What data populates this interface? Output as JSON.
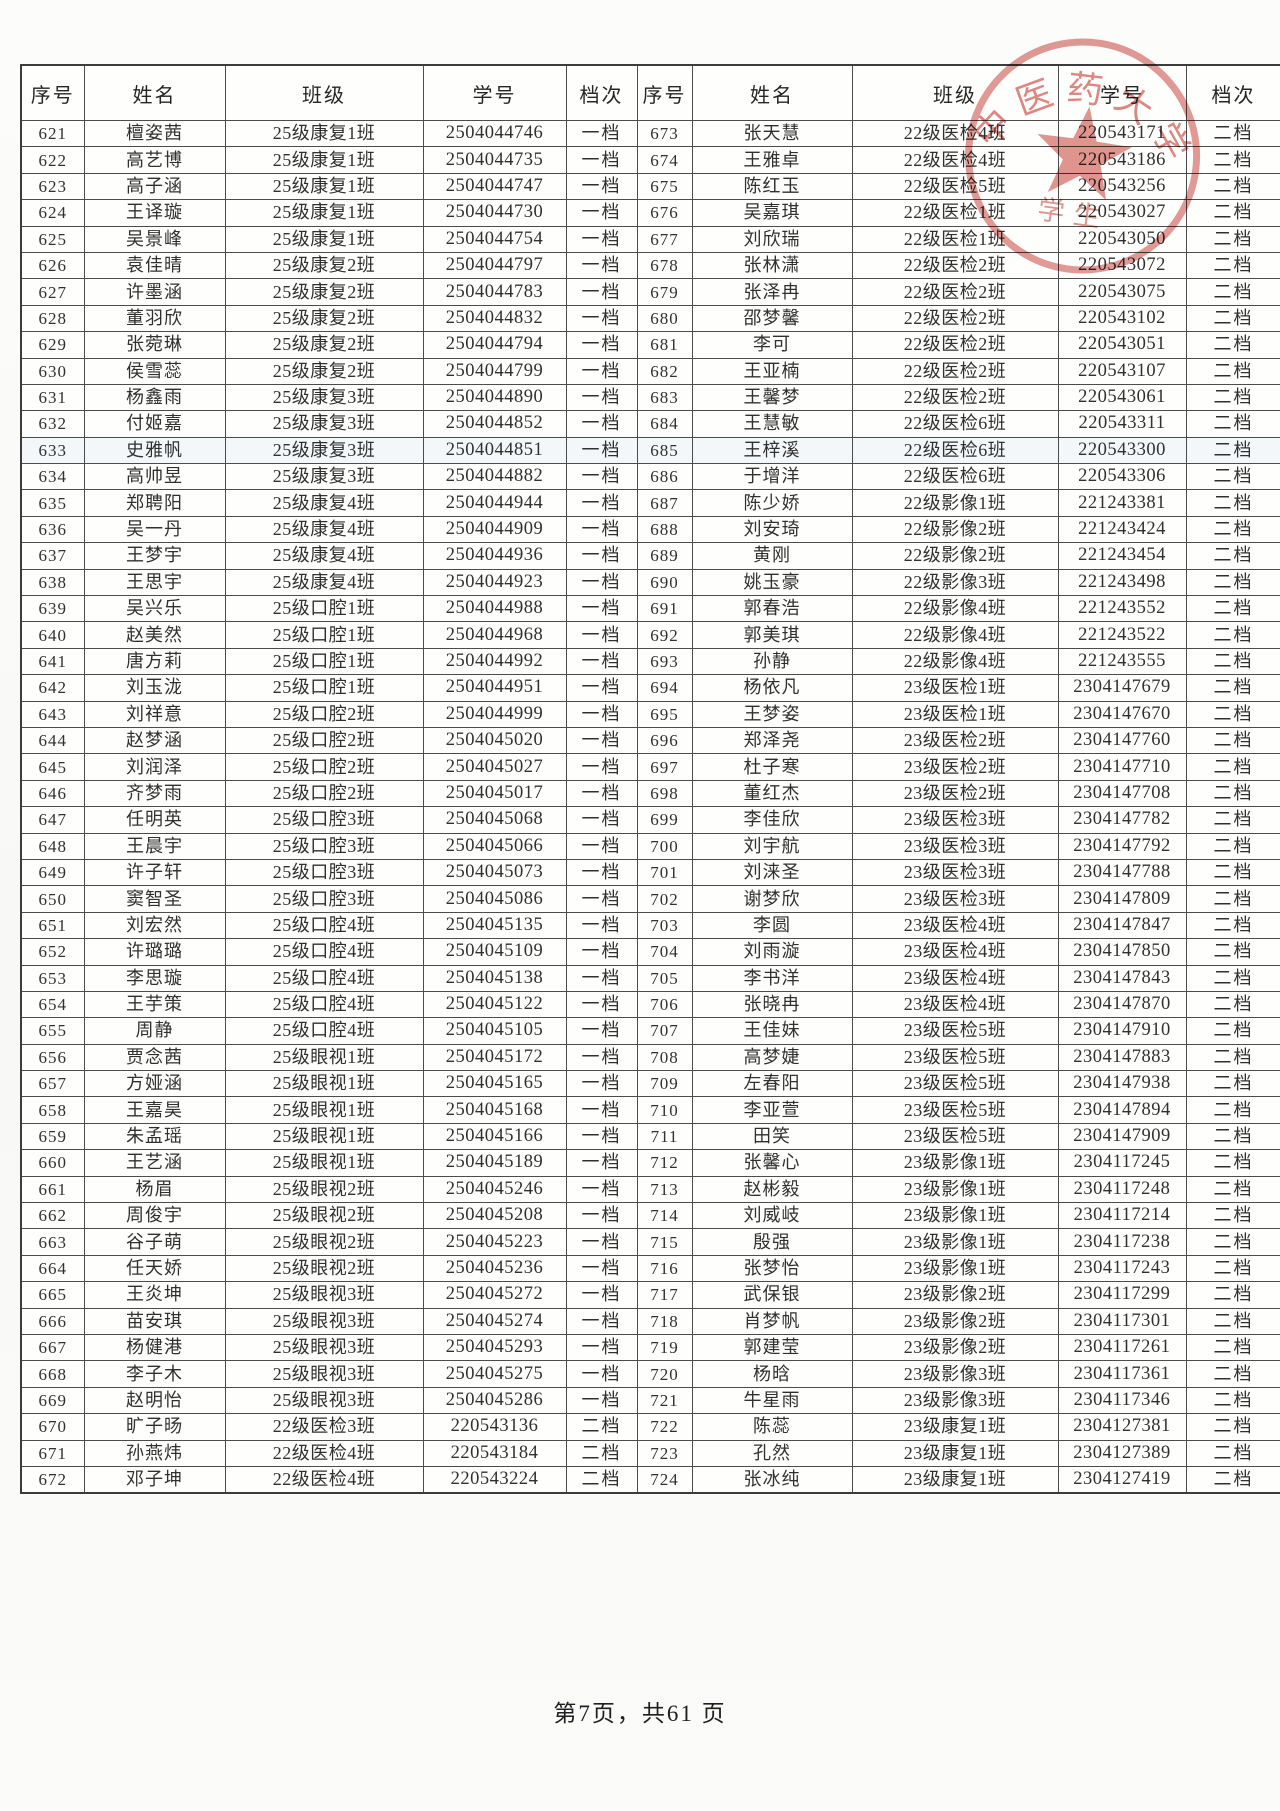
{
  "table": {
    "headers": [
      "序号",
      "姓名",
      "班级",
      "学号",
      "档次",
      "序号",
      "姓名",
      "班级",
      "学号",
      "档次"
    ],
    "rows": [
      [
        "621",
        "檀姿茜",
        "25级康复1班",
        "2504044746",
        "一档",
        "673",
        "张天慧",
        "22级医检4班",
        "220543171",
        "二档"
      ],
      [
        "622",
        "高艺博",
        "25级康复1班",
        "2504044735",
        "一档",
        "674",
        "王雅卓",
        "22级医检4班",
        "220543186",
        "二档"
      ],
      [
        "623",
        "高子涵",
        "25级康复1班",
        "2504044747",
        "一档",
        "675",
        "陈红玉",
        "22级医检5班",
        "220543256",
        "二档"
      ],
      [
        "624",
        "王译璇",
        "25级康复1班",
        "2504044730",
        "一档",
        "676",
        "吴嘉琪",
        "22级医检1班",
        "220543027",
        "二档"
      ],
      [
        "625",
        "吴景峰",
        "25级康复1班",
        "2504044754",
        "一档",
        "677",
        "刘欣瑞",
        "22级医检1班",
        "220543050",
        "二档"
      ],
      [
        "626",
        "袁佳晴",
        "25级康复2班",
        "2504044797",
        "一档",
        "678",
        "张林潇",
        "22级医检2班",
        "220543072",
        "二档"
      ],
      [
        "627",
        "许墨涵",
        "25级康复2班",
        "2504044783",
        "一档",
        "679",
        "张泽冉",
        "22级医检2班",
        "220543075",
        "二档"
      ],
      [
        "628",
        "董羽欣",
        "25级康复2班",
        "2504044832",
        "一档",
        "680",
        "邵梦馨",
        "22级医检2班",
        "220543102",
        "二档"
      ],
      [
        "629",
        "张菀琳",
        "25级康复2班",
        "2504044794",
        "一档",
        "681",
        "李可",
        "22级医检2班",
        "220543051",
        "二档"
      ],
      [
        "630",
        "侯雪蕊",
        "25级康复2班",
        "2504044799",
        "一档",
        "682",
        "王亚楠",
        "22级医检2班",
        "220543107",
        "二档"
      ],
      [
        "631",
        "杨鑫雨",
        "25级康复3班",
        "2504044890",
        "一档",
        "683",
        "王馨梦",
        "22级医检2班",
        "220543061",
        "二档"
      ],
      [
        "632",
        "付姬嘉",
        "25级康复3班",
        "2504044852",
        "一档",
        "684",
        "王慧敏",
        "22级医检6班",
        "220543311",
        "二档"
      ],
      [
        "633",
        "史雅帆",
        "25级康复3班",
        "2504044851",
        "一档",
        "685",
        "王梓溪",
        "22级医检6班",
        "220543300",
        "二档"
      ],
      [
        "634",
        "高帅昱",
        "25级康复3班",
        "2504044882",
        "一档",
        "686",
        "于增洋",
        "22级医检6班",
        "220543306",
        "二档"
      ],
      [
        "635",
        "郑聘阳",
        "25级康复4班",
        "2504044944",
        "一档",
        "687",
        "陈少娇",
        "22级影像1班",
        "221243381",
        "二档"
      ],
      [
        "636",
        "吴一丹",
        "25级康复4班",
        "2504044909",
        "一档",
        "688",
        "刘安琦",
        "22级影像2班",
        "221243424",
        "二档"
      ],
      [
        "637",
        "王梦宇",
        "25级康复4班",
        "2504044936",
        "一档",
        "689",
        "黄刚",
        "22级影像2班",
        "221243454",
        "二档"
      ],
      [
        "638",
        "王思宇",
        "25级康复4班",
        "2504044923",
        "一档",
        "690",
        "姚玉豪",
        "22级影像3班",
        "221243498",
        "二档"
      ],
      [
        "639",
        "吴兴乐",
        "25级口腔1班",
        "2504044988",
        "一档",
        "691",
        "郭春浩",
        "22级影像4班",
        "221243552",
        "二档"
      ],
      [
        "640",
        "赵美然",
        "25级口腔1班",
        "2504044968",
        "一档",
        "692",
        "郭美琪",
        "22级影像4班",
        "221243522",
        "二档"
      ],
      [
        "641",
        "唐方莉",
        "25级口腔1班",
        "2504044992",
        "一档",
        "693",
        "孙静",
        "22级影像4班",
        "221243555",
        "二档"
      ],
      [
        "642",
        "刘玉泷",
        "25级口腔1班",
        "2504044951",
        "一档",
        "694",
        "杨依凡",
        "23级医检1班",
        "2304147679",
        "二档"
      ],
      [
        "643",
        "刘祥意",
        "25级口腔2班",
        "2504044999",
        "一档",
        "695",
        "王梦姿",
        "23级医检1班",
        "2304147670",
        "二档"
      ],
      [
        "644",
        "赵梦涵",
        "25级口腔2班",
        "2504045020",
        "一档",
        "696",
        "郑泽尧",
        "23级医检2班",
        "2304147760",
        "二档"
      ],
      [
        "645",
        "刘润泽",
        "25级口腔2班",
        "2504045027",
        "一档",
        "697",
        "杜子寒",
        "23级医检2班",
        "2304147710",
        "二档"
      ],
      [
        "646",
        "齐梦雨",
        "25级口腔2班",
        "2504045017",
        "一档",
        "698",
        "董红杰",
        "23级医检2班",
        "2304147708",
        "二档"
      ],
      [
        "647",
        "任明英",
        "25级口腔3班",
        "2504045068",
        "一档",
        "699",
        "李佳欣",
        "23级医检3班",
        "2304147782",
        "二档"
      ],
      [
        "648",
        "王晨宇",
        "25级口腔3班",
        "2504045066",
        "一档",
        "700",
        "刘宇航",
        "23级医检3班",
        "2304147792",
        "二档"
      ],
      [
        "649",
        "许子轩",
        "25级口腔3班",
        "2504045073",
        "一档",
        "701",
        "刘涞圣",
        "23级医检3班",
        "2304147788",
        "二档"
      ],
      [
        "650",
        "窦智圣",
        "25级口腔3班",
        "2504045086",
        "一档",
        "702",
        "谢梦欣",
        "23级医检3班",
        "2304147809",
        "二档"
      ],
      [
        "651",
        "刘宏然",
        "25级口腔4班",
        "2504045135",
        "一档",
        "703",
        "李圆",
        "23级医检4班",
        "2304147847",
        "二档"
      ],
      [
        "652",
        "许璐璐",
        "25级口腔4班",
        "2504045109",
        "一档",
        "704",
        "刘雨漩",
        "23级医检4班",
        "2304147850",
        "二档"
      ],
      [
        "653",
        "李思璇",
        "25级口腔4班",
        "2504045138",
        "一档",
        "705",
        "李书洋",
        "23级医检4班",
        "2304147843",
        "二档"
      ],
      [
        "654",
        "王芋策",
        "25级口腔4班",
        "2504045122",
        "一档",
        "706",
        "张晓冉",
        "23级医检4班",
        "2304147870",
        "二档"
      ],
      [
        "655",
        "周静",
        "25级口腔4班",
        "2504045105",
        "一档",
        "707",
        "王佳妹",
        "23级医检5班",
        "2304147910",
        "二档"
      ],
      [
        "656",
        "贾念茜",
        "25级眼视1班",
        "2504045172",
        "一档",
        "708",
        "高梦婕",
        "23级医检5班",
        "2304147883",
        "二档"
      ],
      [
        "657",
        "方娅涵",
        "25级眼视1班",
        "2504045165",
        "一档",
        "709",
        "左春阳",
        "23级医检5班",
        "2304147938",
        "二档"
      ],
      [
        "658",
        "王嘉昊",
        "25级眼视1班",
        "2504045168",
        "一档",
        "710",
        "李亚萱",
        "23级医检5班",
        "2304147894",
        "二档"
      ],
      [
        "659",
        "朱孟瑶",
        "25级眼视1班",
        "2504045166",
        "一档",
        "711",
        "田笑",
        "23级医检5班",
        "2304147909",
        "二档"
      ],
      [
        "660",
        "王艺涵",
        "25级眼视1班",
        "2504045189",
        "一档",
        "712",
        "张馨心",
        "23级影像1班",
        "2304117245",
        "二档"
      ],
      [
        "661",
        "杨眉",
        "25级眼视2班",
        "2504045246",
        "一档",
        "713",
        "赵彬毅",
        "23级影像1班",
        "2304117248",
        "二档"
      ],
      [
        "662",
        "周俊宇",
        "25级眼视2班",
        "2504045208",
        "一档",
        "714",
        "刘威岐",
        "23级影像1班",
        "2304117214",
        "二档"
      ],
      [
        "663",
        "谷子萌",
        "25级眼视2班",
        "2504045223",
        "一档",
        "715",
        "殷强",
        "23级影像1班",
        "2304117238",
        "二档"
      ],
      [
        "664",
        "任天娇",
        "25级眼视2班",
        "2504045236",
        "一档",
        "716",
        "张梦怡",
        "23级影像1班",
        "2304117243",
        "二档"
      ],
      [
        "665",
        "王炎坤",
        "25级眼视3班",
        "2504045272",
        "一档",
        "717",
        "武保银",
        "23级影像2班",
        "2304117299",
        "二档"
      ],
      [
        "666",
        "苗安琪",
        "25级眼视3班",
        "2504045274",
        "一档",
        "718",
        "肖梦帆",
        "23级影像2班",
        "2304117301",
        "二档"
      ],
      [
        "667",
        "杨健港",
        "25级眼视3班",
        "2504045293",
        "一档",
        "719",
        "郭建莹",
        "23级影像2班",
        "2304117261",
        "二档"
      ],
      [
        "668",
        "李子木",
        "25级眼视3班",
        "2504045275",
        "一档",
        "720",
        "杨晗",
        "23级影像3班",
        "2304117361",
        "二档"
      ],
      [
        "669",
        "赵明怡",
        "25级眼视3班",
        "2504045286",
        "一档",
        "721",
        "牛星雨",
        "23级影像3班",
        "2304117346",
        "二档"
      ],
      [
        "670",
        "旷子旸",
        "22级医检3班",
        "220543136",
        "二档",
        "722",
        "陈蕊",
        "23级康复1班",
        "2304127381",
        "二档"
      ],
      [
        "671",
        "孙燕炜",
        "22级医检4班",
        "220543184",
        "二档",
        "723",
        "孔然",
        "23级康复1班",
        "2304127389",
        "二档"
      ],
      [
        "672",
        "邓子坤",
        "22级医检4班",
        "220543224",
        "二档",
        "724",
        "张冰纯",
        "23级康复1班",
        "2304127419",
        "二档"
      ]
    ]
  },
  "stamp": {
    "arc_text": "中医药大学",
    "inner_text": "学生",
    "color": "#c94a40"
  },
  "footer": {
    "text": "第7页，共61 页"
  }
}
